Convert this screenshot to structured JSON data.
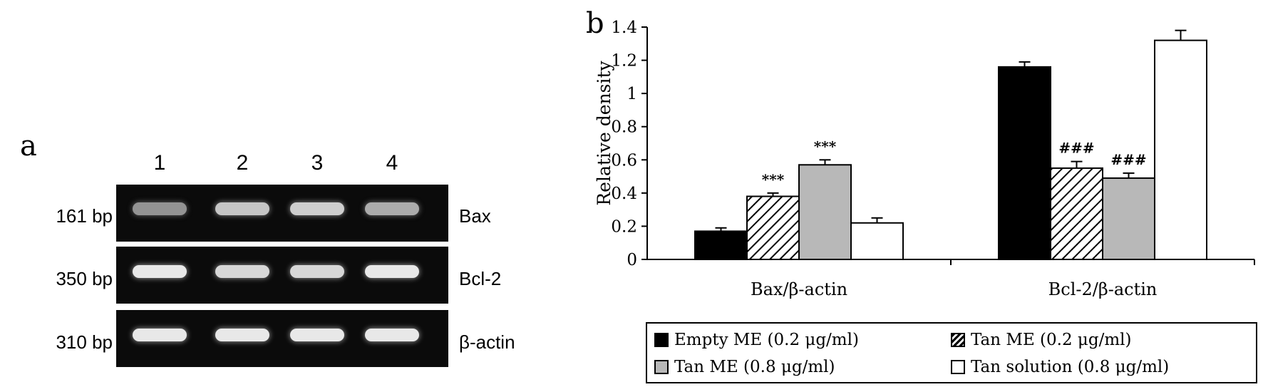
{
  "panel_a": {
    "letter": "a",
    "lanes": [
      "1",
      "2",
      "3",
      "4"
    ],
    "rows": [
      {
        "size": "161 bp",
        "gene": "Bax",
        "intensity": [
          0.45,
          0.75,
          0.8,
          0.6
        ]
      },
      {
        "size": "350 bp",
        "gene": "Bcl-2",
        "intensity": [
          0.95,
          0.85,
          0.85,
          0.95
        ]
      },
      {
        "size": "310 bp",
        "gene": "β-actin",
        "intensity": [
          0.95,
          0.95,
          0.95,
          0.95
        ]
      }
    ]
  },
  "panel_b": {
    "letter": "b"
  },
  "chart_data": {
    "type": "bar",
    "ylabel": "Relative density",
    "ylim": [
      0,
      1.4
    ],
    "yticks": [
      "0",
      "0.2",
      "0.4",
      "0.6",
      "0.8",
      "1",
      "1.2",
      "1.4"
    ],
    "categories": [
      "Bax/β-actin",
      "Bcl-2/β-actin"
    ],
    "series": [
      {
        "name": "Empty ME (0.2 μg/ml)",
        "fill": "black",
        "values": [
          0.17,
          1.16
        ],
        "errors": [
          0.02,
          0.03
        ],
        "annotations": [
          "",
          ""
        ]
      },
      {
        "name": "Tan ME (0.2 μg/ml)",
        "fill": "hatch",
        "values": [
          0.38,
          0.55
        ],
        "errors": [
          0.02,
          0.04
        ],
        "annotations": [
          "***",
          "###"
        ]
      },
      {
        "name": "Tan ME (0.8 μg/ml)",
        "fill": "gray",
        "values": [
          0.57,
          0.49
        ],
        "errors": [
          0.03,
          0.03
        ],
        "annotations": [
          "***",
          "###"
        ]
      },
      {
        "name": "Tan solution (0.8 μg/ml)",
        "fill": "white",
        "values": [
          0.22,
          1.32
        ],
        "errors": [
          0.03,
          0.06
        ],
        "annotations": [
          "",
          ""
        ]
      }
    ],
    "legend_position": "bottom"
  }
}
